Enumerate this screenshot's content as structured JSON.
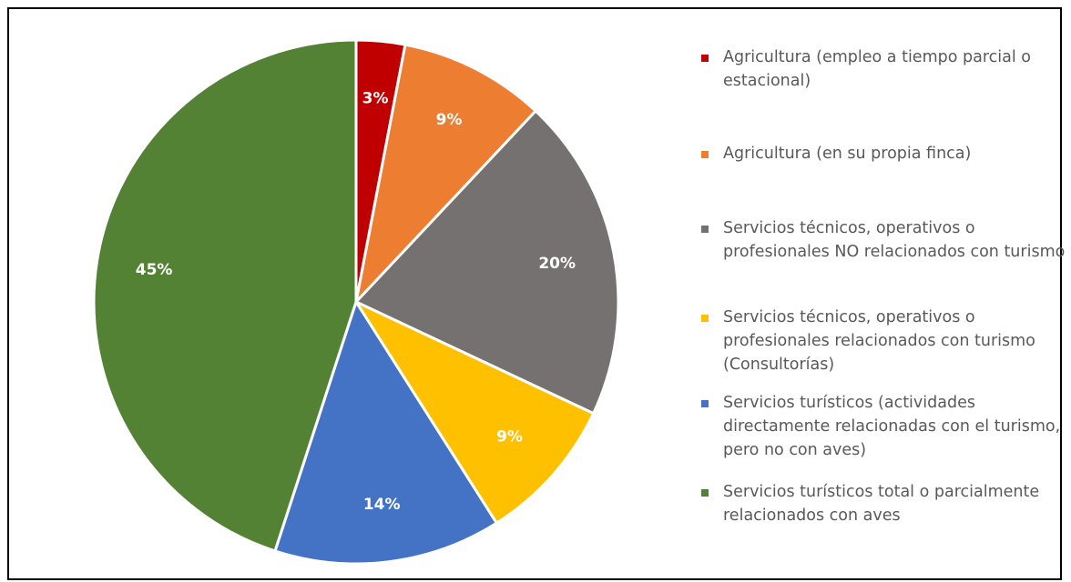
{
  "chart_data": {
    "type": "pie",
    "labels": [
      "Agricultura (empleo a tiempo parcial o estacional)",
      "Agricultura (en su propia finca)",
      "Servicios técnicos, operativos o profesionales NO relacionados con turismo",
      "Servicios técnicos, operativos o profesionales relacionados con turismo (Consultorías)",
      "Servicios turísticos (actividades directamente relacionadas con el turismo, pero no con aves)",
      "Servicios turísticos total o parcialmente relacionados con aves"
    ],
    "values": [
      3,
      9,
      20,
      9,
      14,
      45
    ],
    "data_labels": [
      "3%",
      "9%",
      "20%",
      "9%",
      "14%",
      "45%"
    ],
    "colors": [
      "#C00000",
      "#ED7D31",
      "#767171",
      "#FFC000",
      "#4472C4",
      "#548235"
    ],
    "legend_position": "right",
    "start_angle_deg": 0,
    "direction": "clockwise"
  }
}
